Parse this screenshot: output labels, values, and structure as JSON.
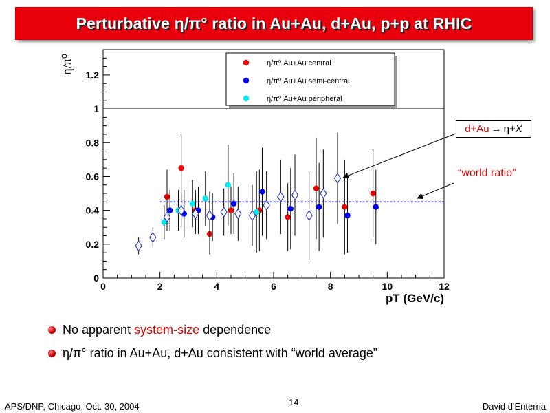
{
  "slide": {
    "title": "Perturbative η/π° ratio in Au+Au, d+Au, p+p at RHIC",
    "bullets": [
      {
        "pre": "No apparent ",
        "highlight": "system-size",
        "post": " dependence"
      },
      {
        "pre": "η/π° ratio in Au+Au, d+Au consistent with “world average”",
        "highlight": "",
        "post": ""
      }
    ],
    "footer_left": "APS/DNP, Chicago, Oct. 30, 2004",
    "page_number": "14",
    "footer_right": "David d'Enterria",
    "annotation_box": {
      "part1": "d+Au",
      "arrow": "→",
      "part2": " η+",
      "part3": "X"
    },
    "annotation_world": "“world ratio”",
    "colors": {
      "title_bg": "#e8000c",
      "highlight": "#e00000"
    }
  },
  "chart_data": {
    "type": "scatter",
    "ylabel": "η/π⁰",
    "xlabel": "pT (GeV/c)",
    "xlim": [
      0,
      12
    ],
    "ylim": [
      0,
      1.35
    ],
    "x_ticks": [
      "0",
      "2",
      "4",
      "6",
      "8",
      "10",
      "12"
    ],
    "y_ticks": [
      "0",
      "0.2",
      "0.4",
      "0.6",
      "0.8",
      "1",
      "1.2"
    ],
    "reference_line": 1.0,
    "world_ratio": 0.45,
    "legend_position": "top-right",
    "legend": [
      "η/π⁰ Au+Au central",
      "η/π⁰ Au+Au semi-central",
      "η/π⁰ Au+Au peripheral"
    ],
    "series": [
      {
        "name": "η/π⁰ Au+Au central",
        "color": "#ee0000",
        "marker": "circle",
        "points": [
          [
            2.25,
            0.48,
            0.16
          ],
          [
            2.75,
            0.65,
            0.2
          ],
          [
            3.25,
            0.4,
            0.12
          ],
          [
            3.75,
            0.26,
            0.12
          ],
          [
            4.5,
            0.4,
            0.14
          ],
          [
            5.5,
            0.4,
            0.24
          ],
          [
            6.5,
            0.36,
            0.2
          ],
          [
            7.5,
            0.53,
            0.3
          ],
          [
            8.5,
            0.42,
            0.28
          ],
          [
            9.5,
            0.5,
            0.26
          ]
        ]
      },
      {
        "name": "η/π⁰ Au+Au semi-central",
        "color": "#0000ee",
        "marker": "circle",
        "points": [
          [
            2.35,
            0.4,
            0.12
          ],
          [
            2.85,
            0.38,
            0.14
          ],
          [
            3.35,
            0.4,
            0.14
          ],
          [
            3.85,
            0.36,
            0.14
          ],
          [
            4.6,
            0.44,
            0.18
          ],
          [
            5.6,
            0.51,
            0.26
          ],
          [
            6.6,
            0.41,
            0.24
          ],
          [
            7.6,
            0.42,
            0.26
          ],
          [
            8.6,
            0.37,
            0.22
          ],
          [
            9.6,
            0.42,
            0.22
          ]
        ]
      },
      {
        "name": "η/π⁰ Au+Au peripheral",
        "color": "#00e8f0",
        "marker": "circle",
        "points": [
          [
            2.15,
            0.33,
            0.1
          ],
          [
            2.65,
            0.4,
            0.12
          ],
          [
            3.15,
            0.44,
            0.14
          ],
          [
            3.6,
            0.47,
            0.16
          ],
          [
            4.4,
            0.55,
            0.24
          ],
          [
            5.4,
            0.39,
            0.24
          ]
        ]
      },
      {
        "name": "d+Au → η+X",
        "color": "#2233bb",
        "marker": "open-diamond",
        "points": [
          [
            1.25,
            0.19,
            0.05
          ],
          [
            1.75,
            0.24,
            0.06
          ],
          [
            2.25,
            0.36,
            0.08
          ],
          [
            2.75,
            0.4,
            0.1
          ],
          [
            3.25,
            0.38,
            0.12
          ],
          [
            3.75,
            0.37,
            0.14
          ],
          [
            4.25,
            0.39,
            0.14
          ],
          [
            4.75,
            0.38,
            0.16
          ],
          [
            5.25,
            0.37,
            0.18
          ],
          [
            5.75,
            0.43,
            0.2
          ],
          [
            6.25,
            0.48,
            0.22
          ],
          [
            6.75,
            0.49,
            0.24
          ],
          [
            7.25,
            0.37,
            0.26
          ],
          [
            7.75,
            0.5,
            0.26
          ],
          [
            8.25,
            0.59,
            0.27
          ]
        ]
      }
    ]
  }
}
